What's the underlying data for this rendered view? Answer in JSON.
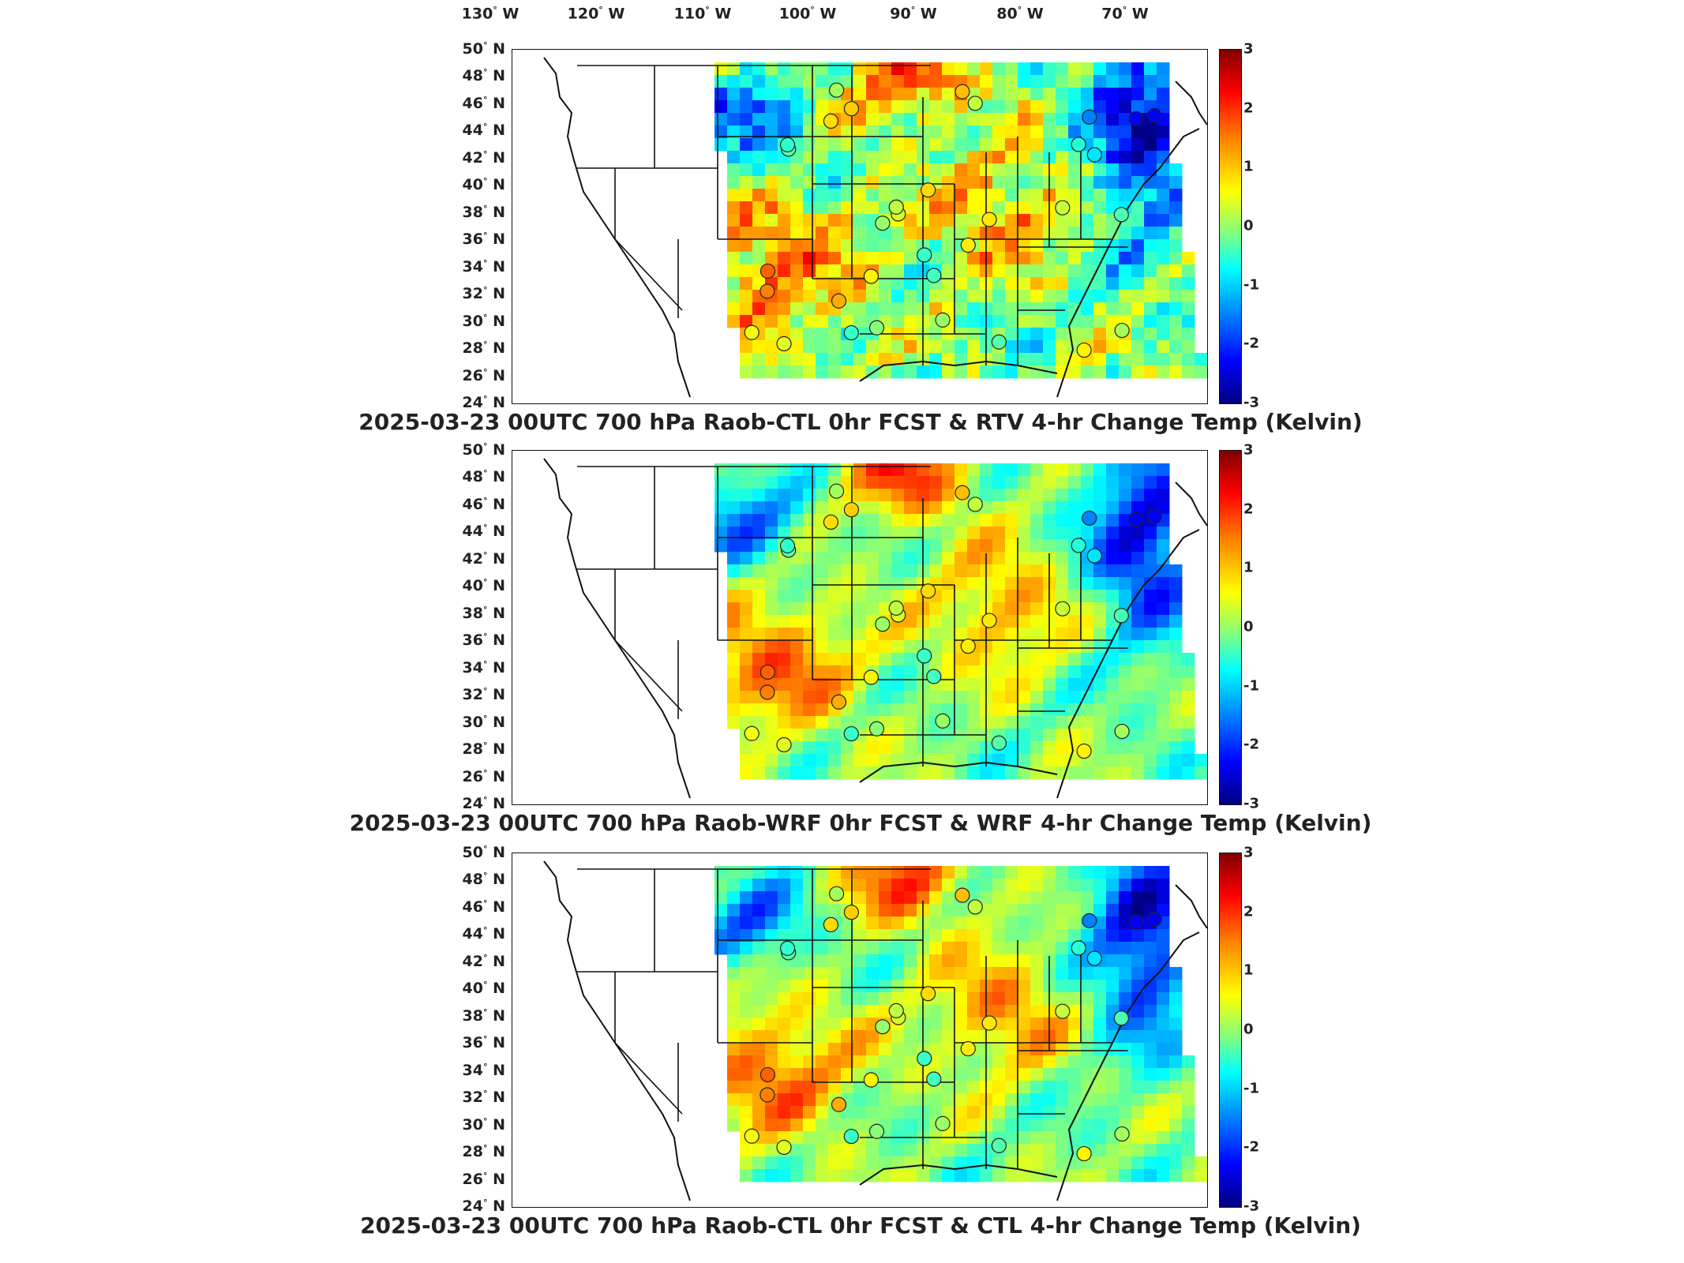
{
  "longitude_labels": [
    "130° W",
    "120° W",
    "110° W",
    "100° W",
    "90° W",
    "80° W",
    "70° W"
  ],
  "latitude_labels": [
    "50° N",
    "48° N",
    "46° N",
    "44° N",
    "42° N",
    "40° N",
    "38° N",
    "36° N",
    "34° N",
    "32° N",
    "30° N",
    "28° N",
    "26° N",
    "24° N"
  ],
  "colorbar": {
    "min": -3,
    "max": 3,
    "ticks": [
      "3",
      "2",
      "1",
      "0",
      "-1",
      "-2",
      "-3"
    ],
    "colormap": "jet"
  },
  "colors": {
    "hot": "#b00000",
    "warm": "#ff6a00",
    "neutral": "#9cff5a",
    "cool": "#00c8ff",
    "cold": "#0010c0",
    "border": "#111111"
  },
  "panels": [
    {
      "title": "2025-03-23 00UTC 700 hPa Raob-CTL 0hr FCST & RTV 4-hr Change Temp (Kelvin)"
    },
    {
      "title": "2025-03-23 00UTC 700 hPa Raob-WRF 0hr FCST & WRF 4-hr Change Temp (Kelvin)"
    },
    {
      "title": "2025-03-23 00UTC 700 hPa Raob-CTL 0hr FCST & CTL 4-hr Change Temp (Kelvin)"
    }
  ]
}
